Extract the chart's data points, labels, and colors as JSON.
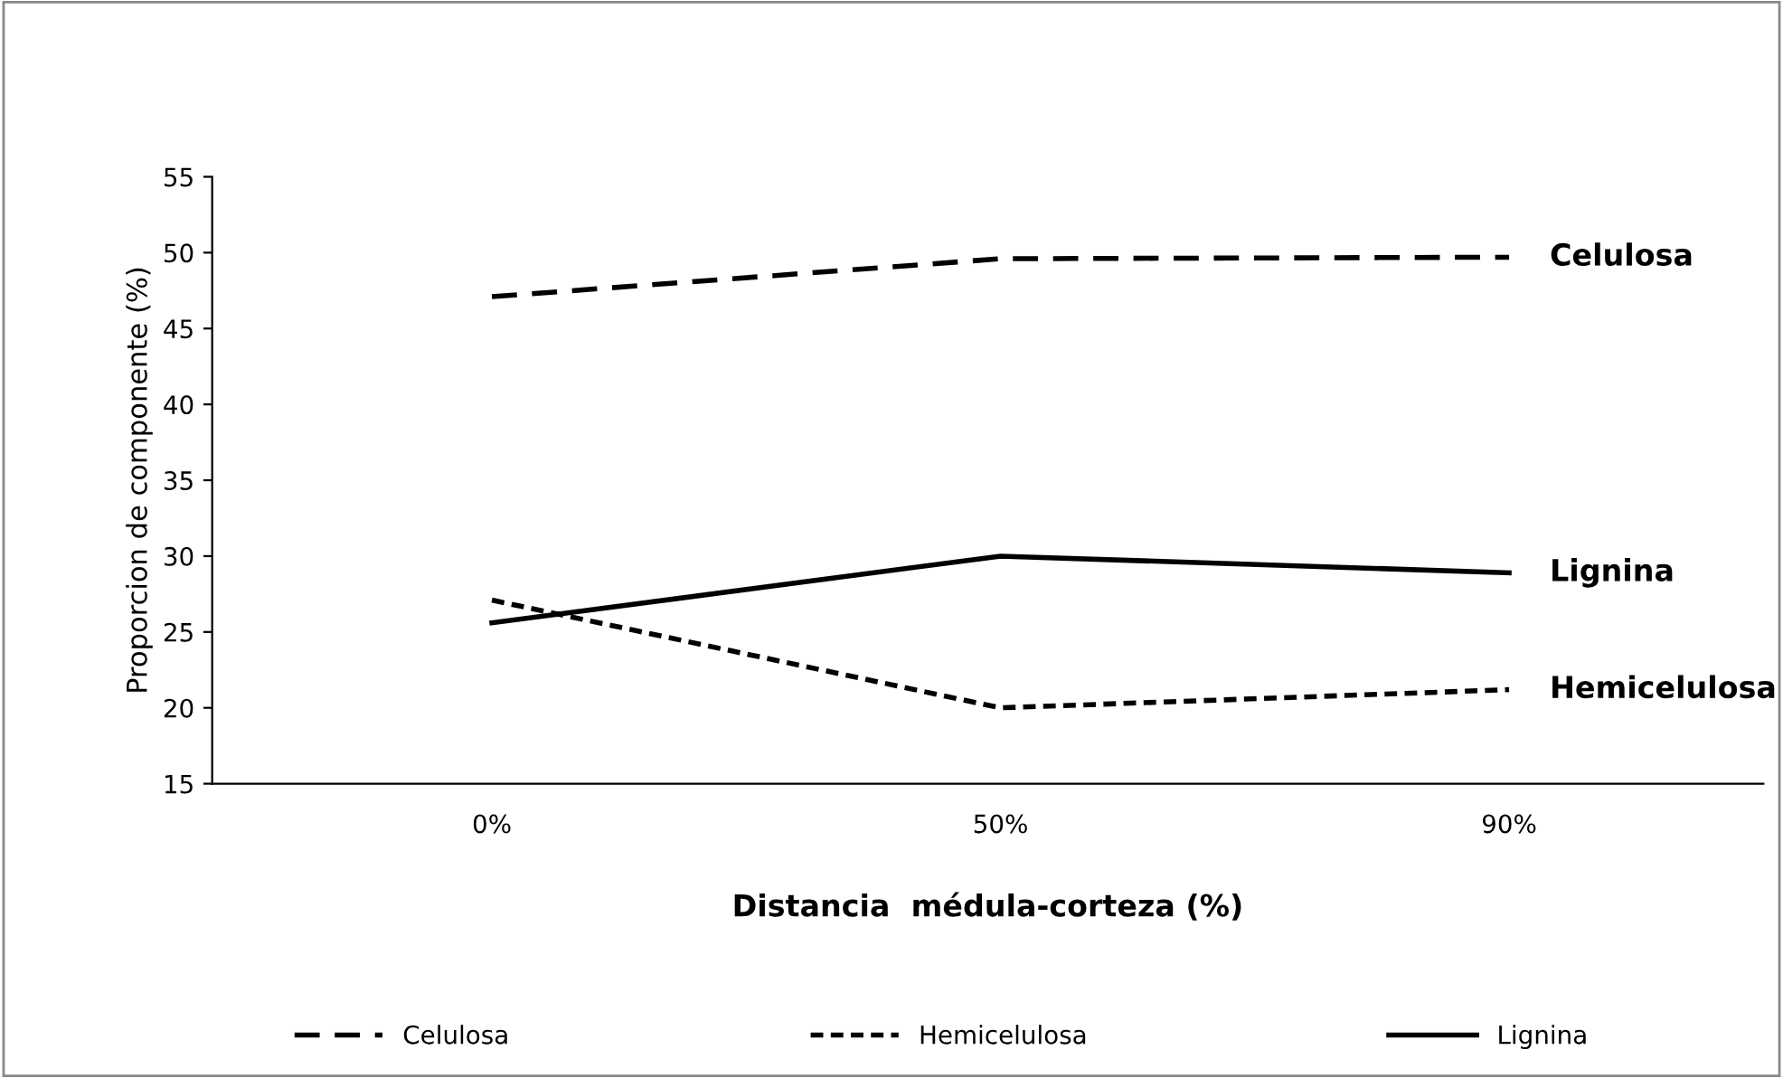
{
  "chart_data": {
    "type": "line",
    "xlabel": "Distancia  médula-corteza (%)",
    "ylabel": "Proporcion de componente (%)",
    "categories": [
      "0%",
      "50%",
      "90%"
    ],
    "series": [
      {
        "name": "Celulosa",
        "color": "#000000",
        "line_style": "dashed",
        "values": [
          47.1,
          49.6,
          49.7
        ]
      },
      {
        "name": "Hemicelulosa",
        "color": "#000000",
        "line_style": "dotted",
        "values": [
          27.1,
          20.0,
          21.2
        ]
      },
      {
        "name": "Lignina",
        "color": "#000000",
        "line_style": "solid",
        "values": [
          25.6,
          30.0,
          28.9
        ]
      }
    ],
    "ylim": [
      15,
      55
    ],
    "yticks": [
      15,
      20,
      25,
      30,
      35,
      40,
      45,
      50,
      55
    ],
    "grid": false,
    "legend": "bottom",
    "marker": "none"
  }
}
